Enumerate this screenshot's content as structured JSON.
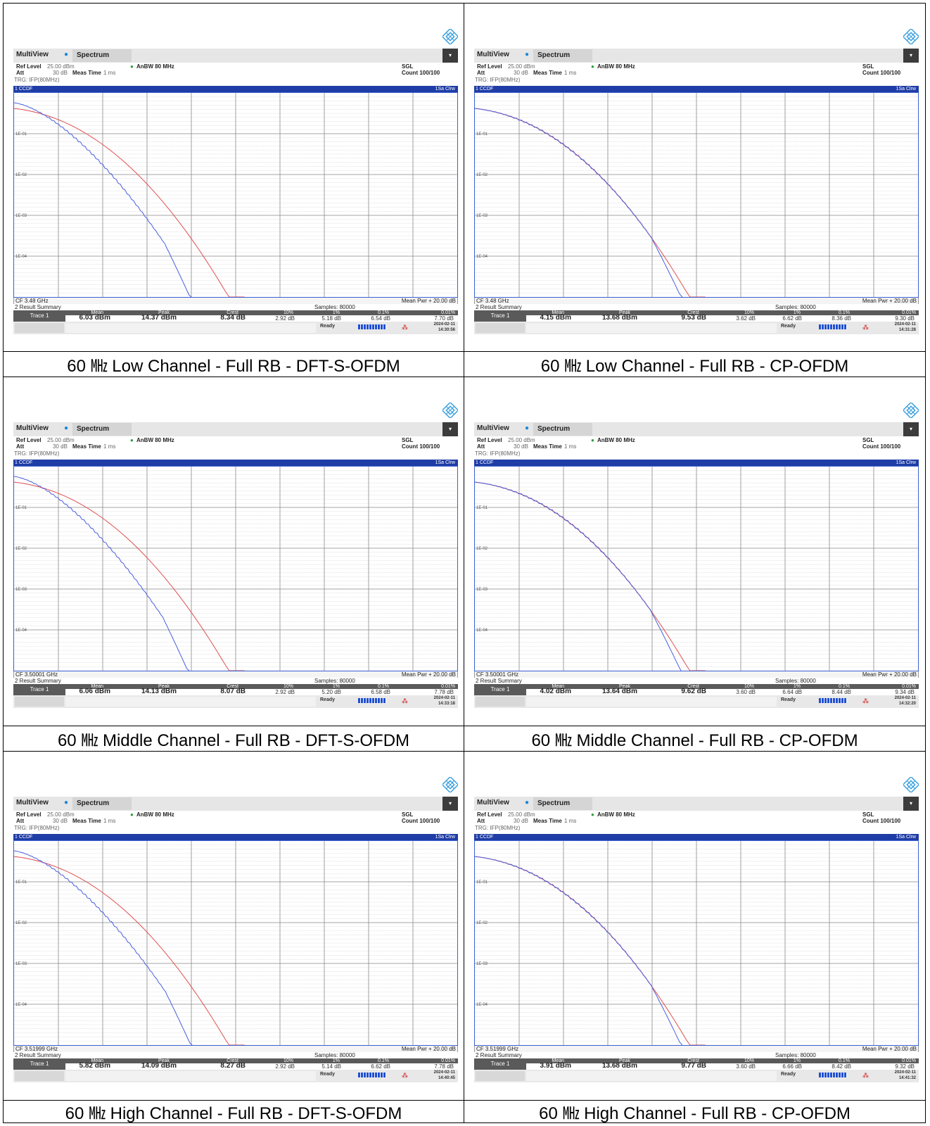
{
  "screens": [
    {
      "caption": "60 ㎒ Low Channel - Full RB - DFT-S-OFDM",
      "cf": "CF 3.48 GHz",
      "mean": "6.03 dBm",
      "peak": "14.37 dBm",
      "crest": "8.34 dB",
      "p10": "2.92 dB",
      "p1": "5.18 dB",
      "p01": "6.54 dB",
      "p001": "7.70 dB",
      "date": "2024-02-11",
      "time": "14:30:56",
      "blue_end_x": 0.4
    },
    {
      "caption": "60 ㎒ Low Channel - Full RB - CP-OFDM",
      "cf": "CF 3.48 GHz",
      "mean": "4.15 dBm",
      "peak": "13.68 dBm",
      "crest": "9.53 dB",
      "p10": "3.62 dB",
      "p1": "6.62 dB",
      "p01": "8.36 dB",
      "p001": "9.30 dB",
      "date": "2024-02-11",
      "time": "14:31:28",
      "blue_end_x": 0.468
    },
    {
      "caption": "60 ㎒ Middle Channel - Full RB - DFT-S-OFDM",
      "cf": "CF 3.50001 GHz",
      "mean": "6.06 dBm",
      "peak": "14.13 dBm",
      "crest": "8.07 dB",
      "p10": "2.92 dB",
      "p1": "5.20 dB",
      "p01": "6.58 dB",
      "p001": "7.78 dB",
      "date": "2024-02-11",
      "time": "14:33:18",
      "blue_end_x": 0.395
    },
    {
      "caption": "60 ㎒ Middle Channel - Full RB - CP-OFDM",
      "cf": "CF 3.50001 GHz",
      "mean": "4.02 dBm",
      "peak": "13.64 dBm",
      "crest": "9.62 dB",
      "p10": "3.60 dB",
      "p1": "6.64 dB",
      "p01": "8.44 dB",
      "p001": "9.34 dB",
      "date": "2024-02-11",
      "time": "14:32:20",
      "blue_end_x": 0.465
    },
    {
      "caption": "60 ㎒ High Channel - Full RB - DFT-S-OFDM",
      "cf": "CF 3.51999 GHz",
      "mean": "5.82 dBm",
      "peak": "14.09 dBm",
      "crest": "8.27 dB",
      "p10": "2.92 dB",
      "p1": "5.14 dB",
      "p01": "6.62 dB",
      "p001": "7.78 dB",
      "date": "2024-02-11",
      "time": "14:40:45",
      "blue_end_x": 0.402
    },
    {
      "caption": "60 ㎒ High Channel - Full RB - CP-OFDM",
      "cf": "CF 3.51999 GHz",
      "mean": "3.91 dBm",
      "peak": "13.68 dBm",
      "crest": "9.77 dB",
      "p10": "3.60 dB",
      "p1": "6.66 dB",
      "p01": "8.42 dB",
      "p001": "9.32 dB",
      "date": "2024-02-11",
      "time": "14:41:32",
      "blue_end_x": 0.468
    }
  ],
  "common": {
    "multiview": "MultiView",
    "tab": "Spectrum",
    "ref_level_label": "Ref Level",
    "ref_level": "25.00 dBm",
    "att_label": "Att",
    "att": "30 dB",
    "meas_time_label": "Meas Time",
    "meas_time": "1 ms",
    "anbw": "AnBW 80 MHz",
    "trg": "TRG: IFP(80MHz)",
    "sgl": "SGL",
    "count": "Count 100/100",
    "ccdf": "1 CCDF",
    "clrw": "1Sa Clrw",
    "y_ticks": [
      "1E-01",
      "1E-02",
      "1E-03",
      "1E-04"
    ],
    "mean_pwr": "Mean Pwr + 20.00 dB",
    "result_summary": "2 Result Summary",
    "samples": "Samples: 80000",
    "col_mean": "Mean",
    "col_peak": "Peak",
    "col_crest": "Crest",
    "col_10": "10%",
    "col_1": "1%",
    "col_01": "0.1%",
    "col_001": "0.01%",
    "trace": "Trace 1",
    "ready": "Ready"
  },
  "colors": {
    "trace_blue": "#4a5fe0",
    "trace_red": "#e05050",
    "header_blue": "#1f3da6"
  }
}
